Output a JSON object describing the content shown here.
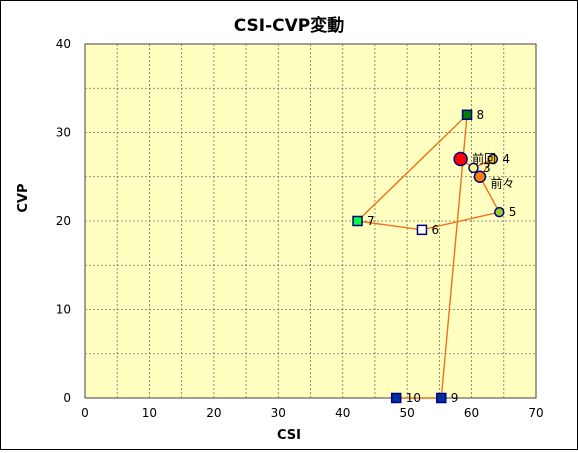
{
  "chart_data": {
    "type": "scatter",
    "title": "CSI-CVP変動",
    "xlabel": "CSI",
    "ylabel": "CVP",
    "xlim": [
      0,
      70
    ],
    "ylim": [
      0,
      40
    ],
    "x_ticks": [
      0,
      10,
      20,
      30,
      40,
      50,
      60,
      70
    ],
    "y_ticks": [
      0,
      10,
      20,
      30,
      40
    ],
    "grid": true,
    "legend": "none",
    "colors": {
      "plot_bg": "#ffffc0",
      "line": "#f07020",
      "grid": "#707070",
      "marker_edge": "#000080"
    },
    "points": [
      {
        "label": "前回",
        "x": 58.3,
        "y": 27,
        "marker": "circle",
        "fill": "#ff0000",
        "size": "large"
      },
      {
        "label": "3",
        "x": 60.3,
        "y": 26,
        "marker": "circle",
        "fill": "#ffff80",
        "size": "small"
      },
      {
        "label": "4",
        "x": 63.3,
        "y": 27,
        "marker": "circle",
        "fill": "#ffd000",
        "size": "small"
      },
      {
        "label": "前々",
        "x": 61.3,
        "y": 25,
        "marker": "circle",
        "fill": "#ff8000",
        "size": "medium"
      },
      {
        "label": "5",
        "x": 64.3,
        "y": 21,
        "marker": "circle",
        "fill": "#99cc33",
        "size": "small"
      },
      {
        "label": "6",
        "x": 52.3,
        "y": 19,
        "marker": "square",
        "fill": "#ffffff",
        "size": "small"
      },
      {
        "label": "7",
        "x": 42.3,
        "y": 20,
        "marker": "square",
        "fill": "#00ff40",
        "size": "small"
      },
      {
        "label": "8",
        "x": 59.3,
        "y": 32,
        "marker": "square",
        "fill": "#008000",
        "size": "small"
      },
      {
        "label": "9",
        "x": 55.3,
        "y": 0,
        "marker": "square",
        "fill": "#0030a0",
        "size": "small"
      },
      {
        "label": "10",
        "x": 48.3,
        "y": 0,
        "marker": "square",
        "fill": "#0030a0",
        "size": "small"
      }
    ],
    "path_order": [
      "前回",
      "3",
      "4",
      "前々",
      "5",
      "6",
      "7",
      "8",
      "9",
      "10"
    ]
  }
}
